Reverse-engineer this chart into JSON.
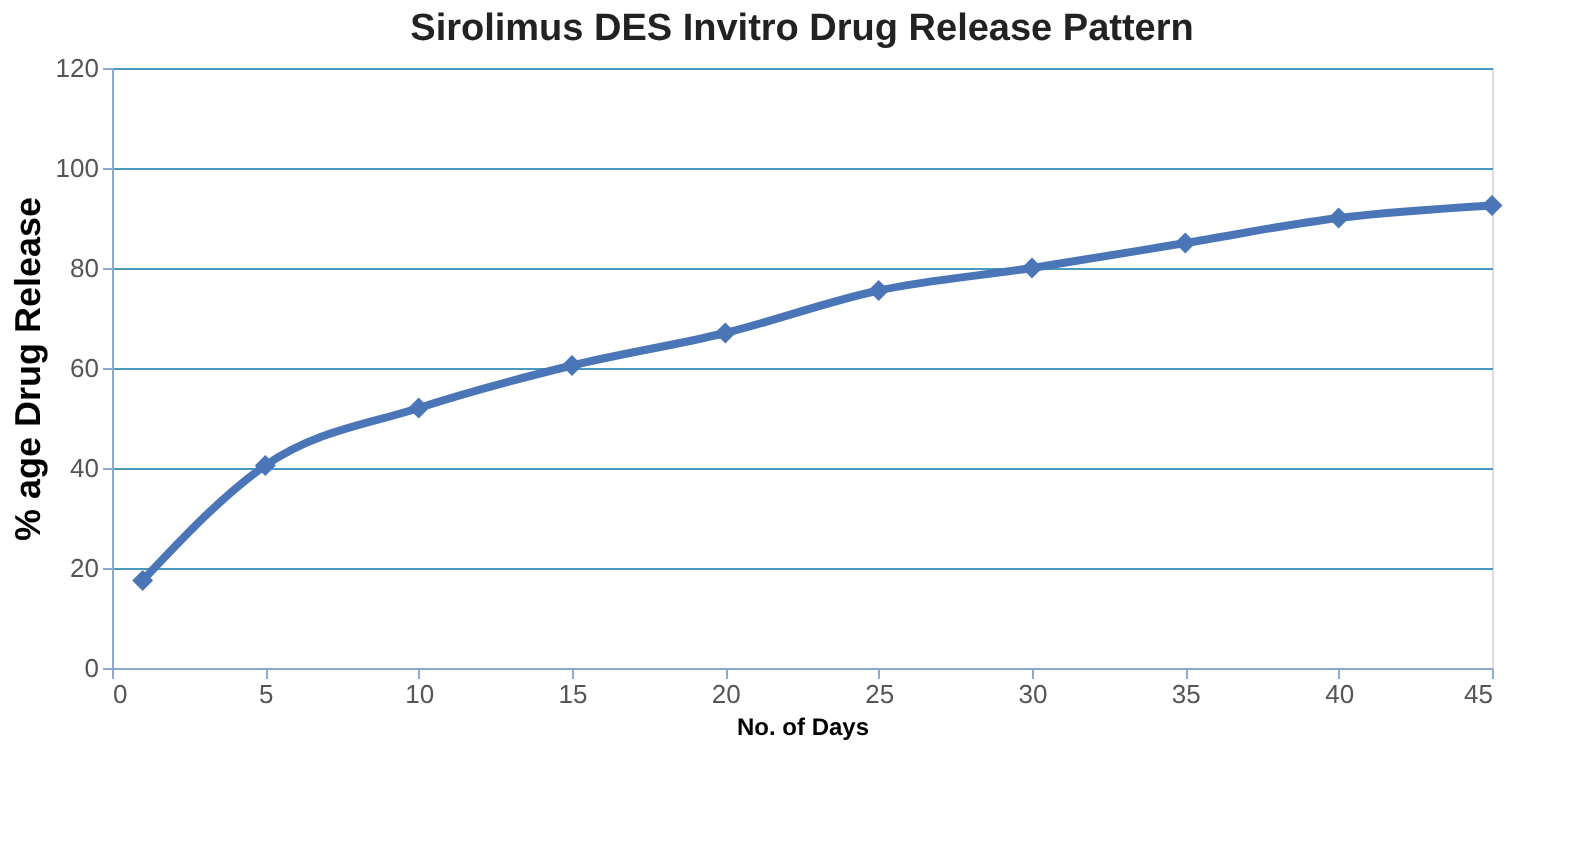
{
  "chart_data": {
    "type": "line",
    "title": "Sirolimus DES Invitro Drug Release Pattern",
    "xlabel": "No. of Days",
    "ylabel": "% age Drug Release",
    "x": [
      1,
      5,
      10,
      15,
      20,
      25,
      30,
      35,
      40,
      45
    ],
    "series": [
      {
        "color": "#4a76b8",
        "values": [
          17.5,
          40.5,
          52,
          60.5,
          67,
          75.5,
          80,
          85,
          90,
          92.5
        ]
      }
    ],
    "xlim": [
      0,
      45
    ],
    "xticks": [
      0,
      5,
      10,
      15,
      20,
      25,
      30,
      35,
      40,
      45
    ],
    "ylim": [
      0,
      120
    ],
    "yticks": [
      0,
      20,
      40,
      60,
      80,
      100,
      120
    ],
    "grid": "y",
    "marker": "diamond",
    "line_style": "solid"
  }
}
